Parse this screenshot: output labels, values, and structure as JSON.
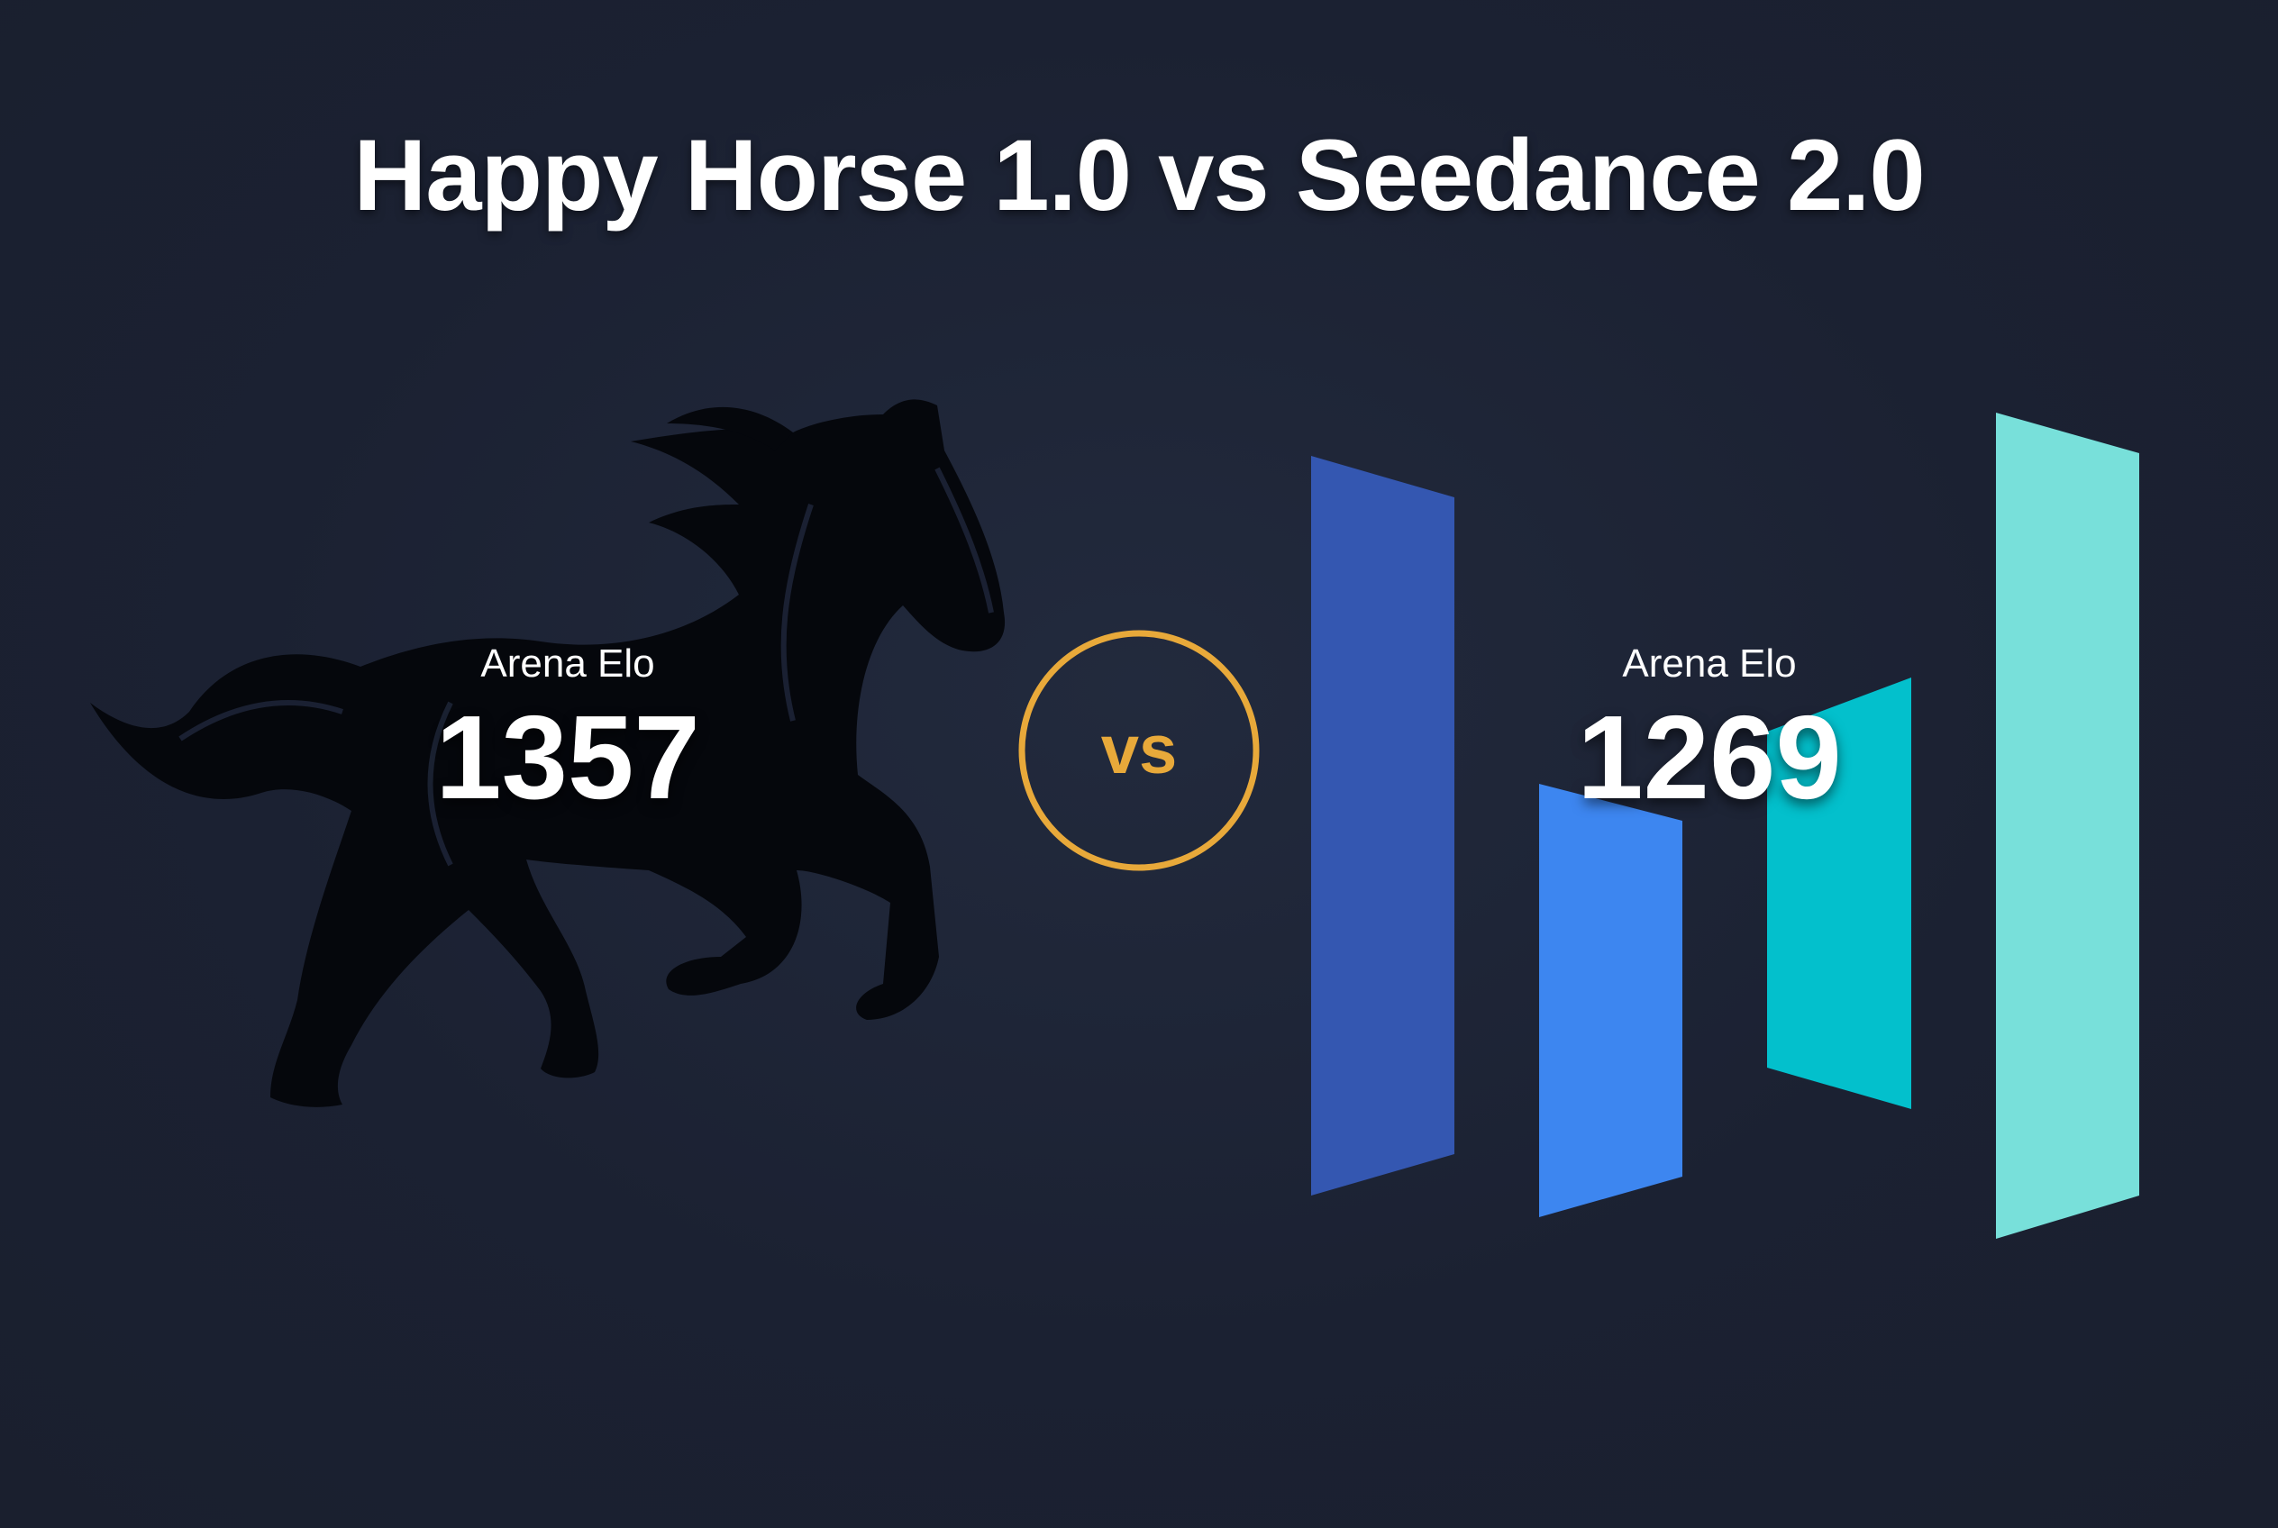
{
  "title": "Happy Horse 1.0 vs Seedance 2.0",
  "left": {
    "label": "Arena Elo",
    "score": "1357",
    "icon": "horse-silhouette-icon"
  },
  "vs_badge": {
    "text": "vs",
    "color": "#e8a93a"
  },
  "right": {
    "label": "Arena Elo",
    "score": "1269",
    "icon": "seedance-bars-logo",
    "logo_colors": [
      "#3457b1",
      "#3d86f0",
      "#03c0cc",
      "#78e0da"
    ]
  }
}
